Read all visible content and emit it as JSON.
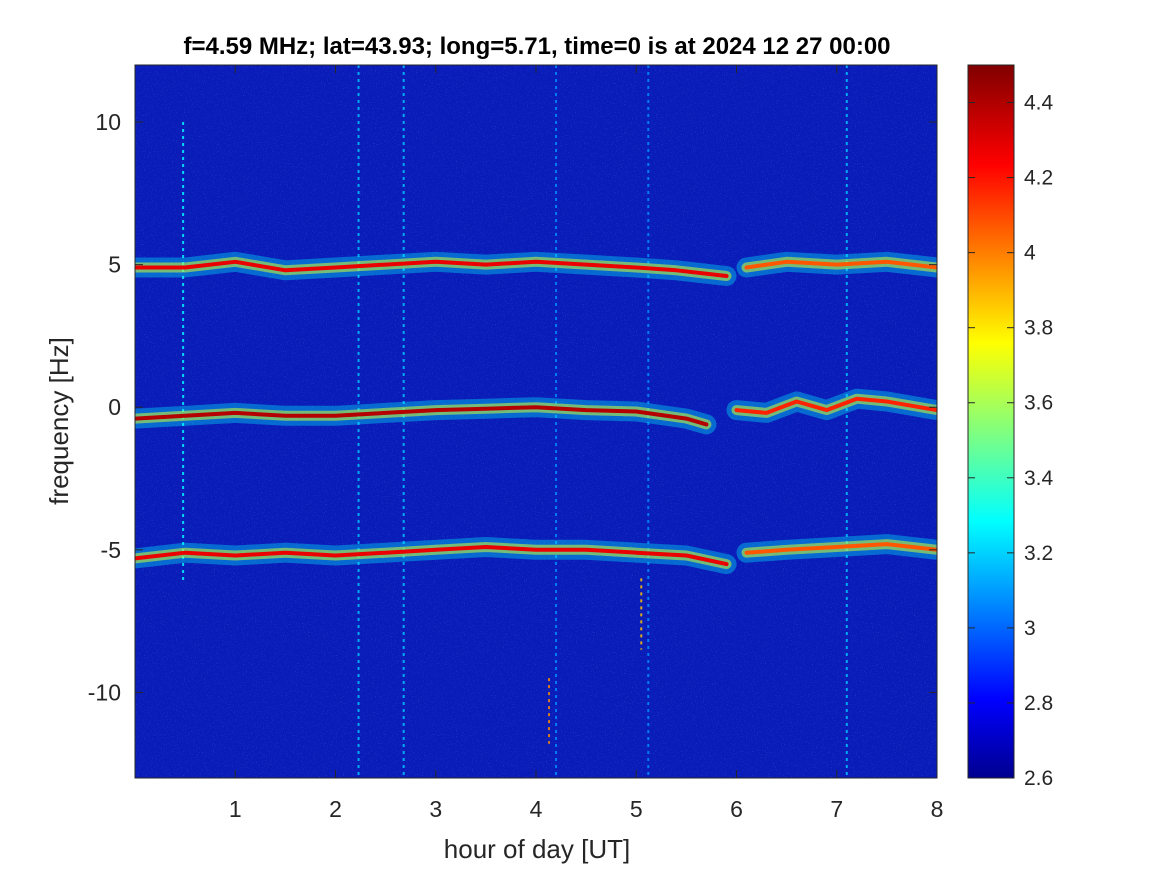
{
  "chart_data": {
    "type": "heatmap",
    "title": "f=4.59 MHz;  lat=43.93; long=5.71, time=0 is at 2024 12 27 00:00",
    "xlabel": "hour of day [UT]",
    "ylabel": "frequency [Hz]",
    "xlim": [
      0,
      8
    ],
    "ylim": [
      -13,
      12
    ],
    "xticks": [
      1,
      2,
      3,
      4,
      5,
      6,
      7,
      8
    ],
    "xtick_labels": [
      "1",
      "2",
      "3",
      "4",
      "5",
      "6",
      "7",
      "8"
    ],
    "yticks": [
      -10,
      -5,
      0,
      5,
      10
    ],
    "ytick_labels": [
      "-10",
      "-5",
      "0",
      "5",
      "10"
    ],
    "colorbar": {
      "colormap": "jet",
      "clim": [
        2.6,
        4.5
      ],
      "ticks": [
        2.6,
        2.8,
        3,
        3.2,
        3.4,
        3.6,
        3.8,
        4,
        4.2,
        4.4
      ],
      "tick_labels": [
        "2.6",
        "2.8",
        "3",
        "3.2",
        "3.4",
        "3.6",
        "3.8",
        "4",
        "4.2",
        "4.4"
      ]
    },
    "background_level": 2.75,
    "traces": [
      {
        "points": [
          [
            0,
            -0.4
          ],
          [
            0.5,
            -0.3
          ],
          [
            1,
            -0.2
          ],
          [
            1.5,
            -0.3
          ],
          [
            2,
            -0.3
          ],
          [
            2.5,
            -0.2
          ],
          [
            3,
            -0.1
          ],
          [
            3.5,
            -0.05
          ],
          [
            4,
            0
          ],
          [
            4.5,
            -0.1
          ],
          [
            5,
            -0.15
          ],
          [
            5.5,
            -0.4
          ],
          [
            5.7,
            -0.6
          ]
        ],
        "level": 4.4
      },
      {
        "points": [
          [
            6,
            -0.1
          ],
          [
            6.3,
            -0.2
          ],
          [
            6.6,
            0.2
          ],
          [
            6.9,
            -0.1
          ],
          [
            7.2,
            0.3
          ],
          [
            7.5,
            0.2
          ],
          [
            8,
            -0.1
          ]
        ],
        "level": 4.2
      },
      {
        "points": [
          [
            0,
            4.9
          ],
          [
            0.5,
            4.9
          ],
          [
            1,
            5.1
          ],
          [
            1.5,
            4.8
          ],
          [
            2,
            4.9
          ],
          [
            2.5,
            5.0
          ],
          [
            3,
            5.1
          ],
          [
            3.5,
            5.0
          ],
          [
            4,
            5.1
          ],
          [
            4.5,
            5.0
          ],
          [
            5,
            4.9
          ],
          [
            5.4,
            4.8
          ],
          [
            5.9,
            4.6
          ]
        ],
        "level": 4.3
      },
      {
        "points": [
          [
            6.1,
            4.9
          ],
          [
            6.5,
            5.1
          ],
          [
            7,
            5.0
          ],
          [
            7.5,
            5.1
          ],
          [
            8,
            4.9
          ]
        ],
        "level": 4.1
      },
      {
        "points": [
          [
            0,
            -5.3
          ],
          [
            0.5,
            -5.1
          ],
          [
            1,
            -5.2
          ],
          [
            1.5,
            -5.1
          ],
          [
            2,
            -5.2
          ],
          [
            2.5,
            -5.1
          ],
          [
            3,
            -5.0
          ],
          [
            3.5,
            -4.9
          ],
          [
            4,
            -5.0
          ],
          [
            4.5,
            -5.0
          ],
          [
            5,
            -5.1
          ],
          [
            5.5,
            -5.2
          ],
          [
            5.9,
            -5.5
          ]
        ],
        "level": 4.3
      },
      {
        "points": [
          [
            6.1,
            -5.1
          ],
          [
            6.5,
            -5.0
          ],
          [
            7,
            -4.9
          ],
          [
            7.5,
            -4.8
          ],
          [
            8,
            -5.0
          ]
        ],
        "level": 4.1
      }
    ],
    "vertical_streaks": [
      {
        "x": 0.48,
        "y_range": [
          -6.1,
          10
        ],
        "level": 3.3
      },
      {
        "x": 2.23,
        "y_range": [
          -13,
          12
        ],
        "level": 3.2
      },
      {
        "x": 2.68,
        "y_range": [
          -13,
          12
        ],
        "level": 3.2
      },
      {
        "x": 4.13,
        "y_range": [
          -11.8,
          -9.5
        ],
        "level": 4.0
      },
      {
        "x": 4.2,
        "y_range": [
          -13,
          12
        ],
        "level": 3.1
      },
      {
        "x": 5.05,
        "y_range": [
          -8.5,
          -6
        ],
        "level": 3.9
      },
      {
        "x": 5.12,
        "y_range": [
          -13,
          12
        ],
        "level": 3.1
      },
      {
        "x": 7.1,
        "y_range": [
          -13,
          12
        ],
        "level": 3.2
      }
    ]
  }
}
